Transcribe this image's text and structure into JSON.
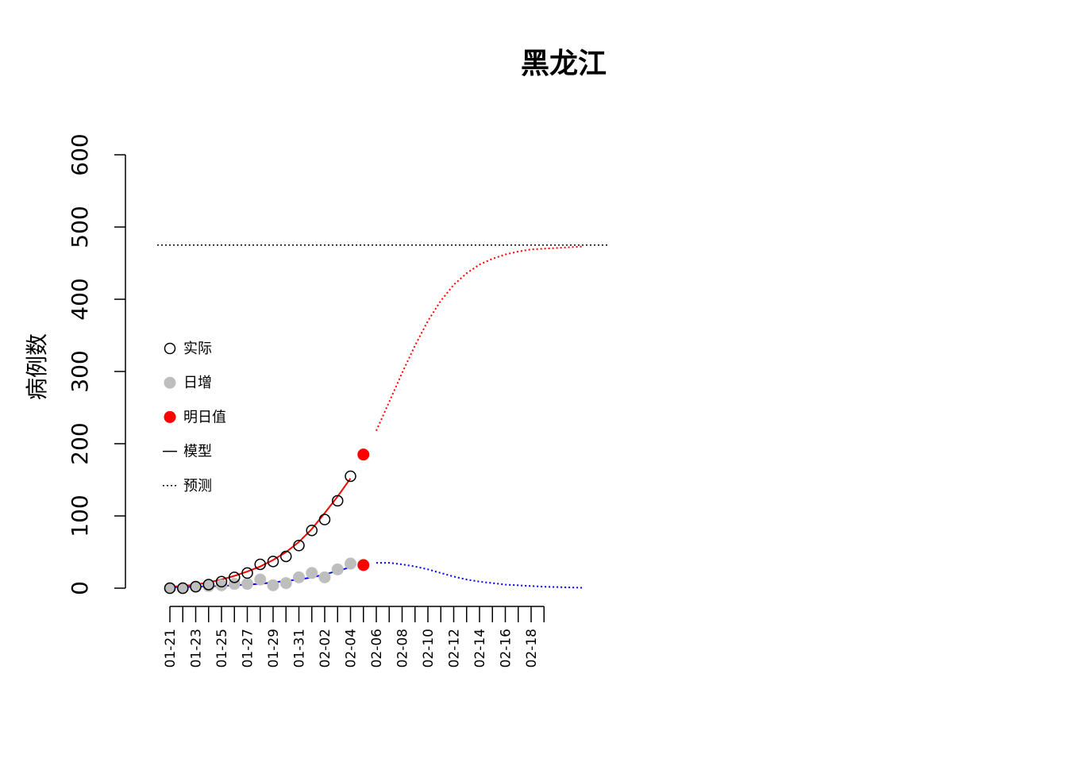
{
  "chart_data": {
    "type": "scatter",
    "title": "黑龙江",
    "xlabel": "",
    "ylabel": "病例数",
    "ylim": [
      0,
      600
    ],
    "yticks": [
      0,
      100,
      200,
      300,
      400,
      500,
      600
    ],
    "x_start": "01-21",
    "x_tick_labels": [
      "01-21",
      "01-23",
      "01-25",
      "01-27",
      "01-29",
      "01-31",
      "02-02",
      "02-04",
      "02-06",
      "02-08",
      "02-10",
      "02-12",
      "02-14",
      "02-16",
      "02-18"
    ],
    "x_minor_tick_count": 30,
    "grid": false,
    "legend": {
      "position": "left-center",
      "entries": [
        {
          "label": "实际",
          "symbol": "open-circle",
          "color": "#000000"
        },
        {
          "label": "日增",
          "symbol": "filled-circle",
          "color": "#bebebe"
        },
        {
          "label": "明日值",
          "symbol": "filled-circle",
          "color": "#ff0000"
        },
        {
          "label": "模型",
          "symbol": "solid-line",
          "color": "#000000"
        },
        {
          "label": "预测",
          "symbol": "dotted-line",
          "color": "#000000"
        }
      ]
    },
    "series": [
      {
        "name": "实际",
        "dates": [
          "01-21",
          "01-22",
          "01-23",
          "01-24",
          "01-25",
          "01-26",
          "01-27",
          "01-28",
          "01-29",
          "01-30",
          "01-31",
          "02-01",
          "02-02",
          "02-03",
          "02-04"
        ],
        "values": [
          0,
          0,
          2,
          5,
          9,
          15,
          21,
          33,
          37,
          44,
          59,
          80,
          95,
          121,
          155
        ],
        "color": "#000000"
      },
      {
        "name": "日增",
        "dates": [
          "01-21",
          "01-22",
          "01-23",
          "01-24",
          "01-25",
          "01-26",
          "01-27",
          "01-28",
          "01-29",
          "01-30",
          "01-31",
          "02-01",
          "02-02",
          "02-03",
          "02-04"
        ],
        "values": [
          0,
          0,
          2,
          3,
          4,
          6,
          6,
          12,
          4,
          7,
          15,
          21,
          15,
          26,
          34
        ],
        "color": "#bebebe"
      },
      {
        "name": "明日值",
        "dates": [
          "02-05",
          "02-05"
        ],
        "values": [
          185,
          32
        ],
        "color": "#ff0000"
      }
    ],
    "curves": {
      "cumulative_model": {
        "color": "#ff0000",
        "style": "solid",
        "from": "01-21",
        "to": "02-04",
        "dates": [
          "01-21",
          "01-22",
          "01-23",
          "01-24",
          "01-25",
          "01-26",
          "01-27",
          "01-28",
          "01-29",
          "01-30",
          "01-31",
          "02-01",
          "02-02",
          "02-03",
          "02-04"
        ],
        "values": [
          2,
          3,
          5,
          8,
          12,
          17,
          23,
          30,
          39,
          50,
          64,
          82,
          104,
          127,
          152
        ]
      },
      "cumulative_forecast": {
        "color": "#ff0000",
        "style": "dotted",
        "from": "02-06",
        "to": "02-22",
        "dates": [
          "02-06",
          "02-07",
          "02-08",
          "02-09",
          "02-10",
          "02-11",
          "02-12",
          "02-13",
          "02-14",
          "02-15",
          "02-16",
          "02-17",
          "02-18",
          "02-19",
          "02-20",
          "02-21",
          "02-22"
        ],
        "values": [
          218,
          258,
          298,
          336,
          370,
          398,
          420,
          436,
          448,
          456,
          462,
          466,
          469,
          470,
          471,
          472,
          473
        ]
      },
      "daily_model": {
        "color": "#0000ff",
        "style": "solid",
        "from": "01-21",
        "to": "02-04",
        "dates": [
          "01-21",
          "01-22",
          "01-23",
          "01-24",
          "01-25",
          "01-26",
          "01-27",
          "01-28",
          "01-29",
          "01-30",
          "01-31",
          "02-01",
          "02-02",
          "02-03",
          "02-04"
        ],
        "values": [
          1,
          1.5,
          2,
          2.5,
          3,
          4,
          5,
          6,
          8,
          10,
          12,
          15,
          19,
          24,
          29
        ]
      },
      "daily_forecast": {
        "color": "#0000ff",
        "style": "dotted",
        "from": "02-06",
        "to": "02-22",
        "dates": [
          "02-06",
          "02-07",
          "02-08",
          "02-09",
          "02-10",
          "02-11",
          "02-12",
          "02-13",
          "02-14",
          "02-15",
          "02-16",
          "02-17",
          "02-18",
          "02-19",
          "02-20",
          "02-21",
          "02-22"
        ],
        "values": [
          35,
          35,
          33,
          30,
          26,
          21,
          16,
          12,
          9,
          7,
          5,
          4,
          3,
          2,
          1.5,
          1,
          0.5
        ]
      },
      "capacity_line": {
        "color": "#000000",
        "style": "dotted",
        "value": 475
      }
    }
  }
}
